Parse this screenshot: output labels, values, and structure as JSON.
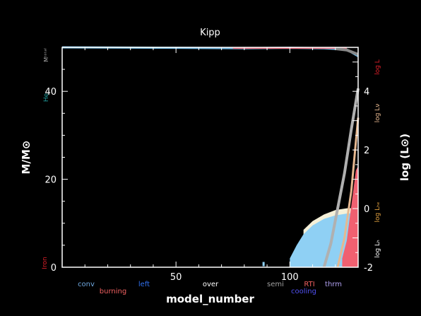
{
  "colors": {
    "background": "#000000",
    "axis": "#ffffff",
    "convection": "#8fd0f4",
    "overshoot": "#f5f0d8",
    "burning": "#f06070",
    "he_mass": "#d0d0c8",
    "grey_line": "#b0b0b0",
    "tan_line": "#e6b890",
    "total_mass_line": "#6fb6e0",
    "top_right_line": "#888888",
    "log_l_label": "#e0202a",
    "log_lnu_label": "#e6b890",
    "log_lhe_label": "#e0a040",
    "log_lh_label": "#ffffff",
    "he_label": "#20a0a0",
    "iron_label": "#e0202a",
    "legend_conv": "#6fa8e0",
    "legend_burning": "#f06060",
    "legend_left": "#3070f0",
    "legend_over": "#ffffff",
    "legend_semi": "#a0a0a0",
    "legend_cooling": "#5050f0",
    "legend_rti": "#f06060",
    "legend_thrm": "#b0a0f0"
  },
  "chart_data": {
    "type": "area",
    "title": "Kipp",
    "xlabel": "model_number",
    "ylabel": "M/M⊙",
    "y2label": "log (L⊙)",
    "xlim": [
      0,
      130
    ],
    "ylim": [
      0,
      50
    ],
    "y2lim": [
      -2,
      5.5
    ],
    "x_ticks": [
      50,
      100
    ],
    "y_ticks": [
      20,
      40
    ],
    "y2_ticks": [
      -2,
      0,
      2,
      4
    ],
    "left_labels": {
      "total": "Mᵗᵒᵗᵃˡ",
      "he": "He",
      "iron": "Iron"
    },
    "right_labels": {
      "log_l": "log L",
      "log_lnu": "log Lν",
      "log_lhe": "log Lₕₑ",
      "log_lh": "log Lₕ"
    },
    "legend": [
      "conv",
      "burning",
      "left",
      "over",
      "semi",
      "cooling",
      "RTI",
      "thrm"
    ],
    "series": [
      {
        "name": "conv",
        "x": [
          100,
          103,
          106,
          110,
          115,
          120,
          125,
          130
        ],
        "y_top": [
          2,
          5,
          7.5,
          9.5,
          11,
          11.8,
          12.2,
          12.4
        ]
      },
      {
        "name": "over",
        "x": [
          106,
          110,
          115,
          120,
          125,
          130
        ],
        "y_top": [
          8.5,
          10.5,
          12,
          13,
          13.4,
          13.5
        ]
      },
      {
        "name": "burning",
        "x": [
          123,
          125,
          127,
          129,
          130
        ],
        "y_top": [
          2,
          6,
          14,
          22,
          23
        ]
      },
      {
        "x": [
          0,
          50,
          80,
          100,
          115,
          125,
          130
        ],
        "y": [
          50,
          49.9,
          49.8,
          49.9,
          49.8,
          49.5,
          48
        ]
      },
      {
        "x": [
          115,
          118,
          121,
          124,
          127,
          130
        ],
        "y2": [
          -2,
          -1.2,
          0,
          1.2,
          2.7,
          4.1
        ]
      },
      {
        "x": [
          121,
          124,
          127,
          130
        ],
        "y2": [
          -2,
          -1,
          0.6,
          3.1
        ]
      }
    ]
  }
}
